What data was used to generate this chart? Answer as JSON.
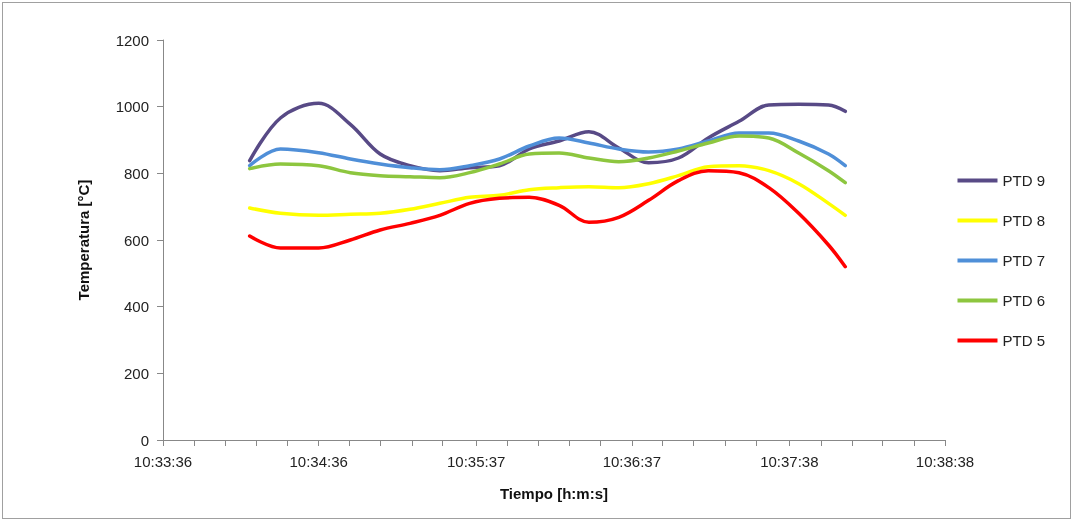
{
  "chart_data": {
    "type": "line",
    "xlabel": "Tiempo [h:m:s]",
    "ylabel": "Temperatura [°C]",
    "x": [
      10.5693,
      10.5726,
      10.5767,
      10.5801,
      10.5833,
      10.5865,
      10.5897,
      10.5929,
      10.5961,
      10.5993,
      10.6025,
      10.6057,
      10.6089,
      10.6121,
      10.6153,
      10.6185,
      10.6218,
      10.625,
      10.6282,
      10.6314,
      10.6332
    ],
    "series": [
      {
        "name": "PTD 9",
        "color": "#584a86",
        "values": [
          838,
          966,
          1010,
          947,
          858,
          823,
          808,
          817,
          823,
          873,
          897,
          925,
          876,
          832,
          846,
          906,
          956,
          1005,
          1007,
          1005,
          986
        ]
      },
      {
        "name": "PTD 8",
        "color": "#ffff00",
        "values": [
          696,
          680,
          674,
          677,
          680,
          692,
          710,
          728,
          734,
          751,
          757,
          760,
          757,
          769,
          793,
          820,
          823,
          808,
          769,
          710,
          674
        ]
      },
      {
        "name": "PTD 7",
        "color": "#4f8fd8",
        "values": [
          823,
          873,
          862,
          843,
          828,
          817,
          811,
          823,
          843,
          882,
          906,
          891,
          873,
          864,
          873,
          897,
          921,
          921,
          897,
          858,
          823
        ]
      },
      {
        "name": "PTD 6",
        "color": "#8dc63f",
        "values": [
          814,
          828,
          823,
          802,
          793,
          790,
          787,
          802,
          828,
          858,
          861,
          846,
          835,
          846,
          867,
          891,
          912,
          906,
          861,
          808,
          772
        ]
      },
      {
        "name": "PTD 5",
        "color": "#ff0000",
        "values": [
          612,
          576,
          576,
          600,
          630,
          650,
          674,
          710,
          725,
          728,
          704,
          653,
          668,
          719,
          778,
          808,
          802,
          757,
          680,
          585,
          520
        ]
      }
    ],
    "xlim": [
      10.56,
      10.6439
    ],
    "xticks": [
      {
        "value": 10.56,
        "label": "10:33:36"
      },
      {
        "value": 10.5633,
        "label": null
      },
      {
        "value": 10.5667,
        "label": null
      },
      {
        "value": 10.57,
        "label": null
      },
      {
        "value": 10.5733,
        "label": null
      },
      {
        "value": 10.5767,
        "label": "10:34:36"
      },
      {
        "value": 10.58,
        "label": null
      },
      {
        "value": 10.5833,
        "label": null
      },
      {
        "value": 10.5867,
        "label": null
      },
      {
        "value": 10.59,
        "label": null
      },
      {
        "value": 10.5936,
        "label": "10:35:37"
      },
      {
        "value": 10.5969,
        "label": null
      },
      {
        "value": 10.6003,
        "label": null
      },
      {
        "value": 10.6036,
        "label": null
      },
      {
        "value": 10.6069,
        "label": null
      },
      {
        "value": 10.6103,
        "label": "10:36:37"
      },
      {
        "value": 10.6136,
        "label": null
      },
      {
        "value": 10.6169,
        "label": null
      },
      {
        "value": 10.6203,
        "label": null
      },
      {
        "value": 10.6236,
        "label": null
      },
      {
        "value": 10.6272,
        "label": "10:37:38"
      },
      {
        "value": 10.6306,
        "label": null
      },
      {
        "value": 10.6339,
        "label": null
      },
      {
        "value": 10.6372,
        "label": null
      },
      {
        "value": 10.6406,
        "label": null
      },
      {
        "value": 10.6439,
        "label": "10:38:38"
      }
    ],
    "ylim": [
      0,
      1200
    ],
    "yticks": [
      0,
      200,
      400,
      600,
      800,
      1000,
      1200
    ],
    "grid": false,
    "legend": "right",
    "marker": "none",
    "line_style": "solid"
  }
}
